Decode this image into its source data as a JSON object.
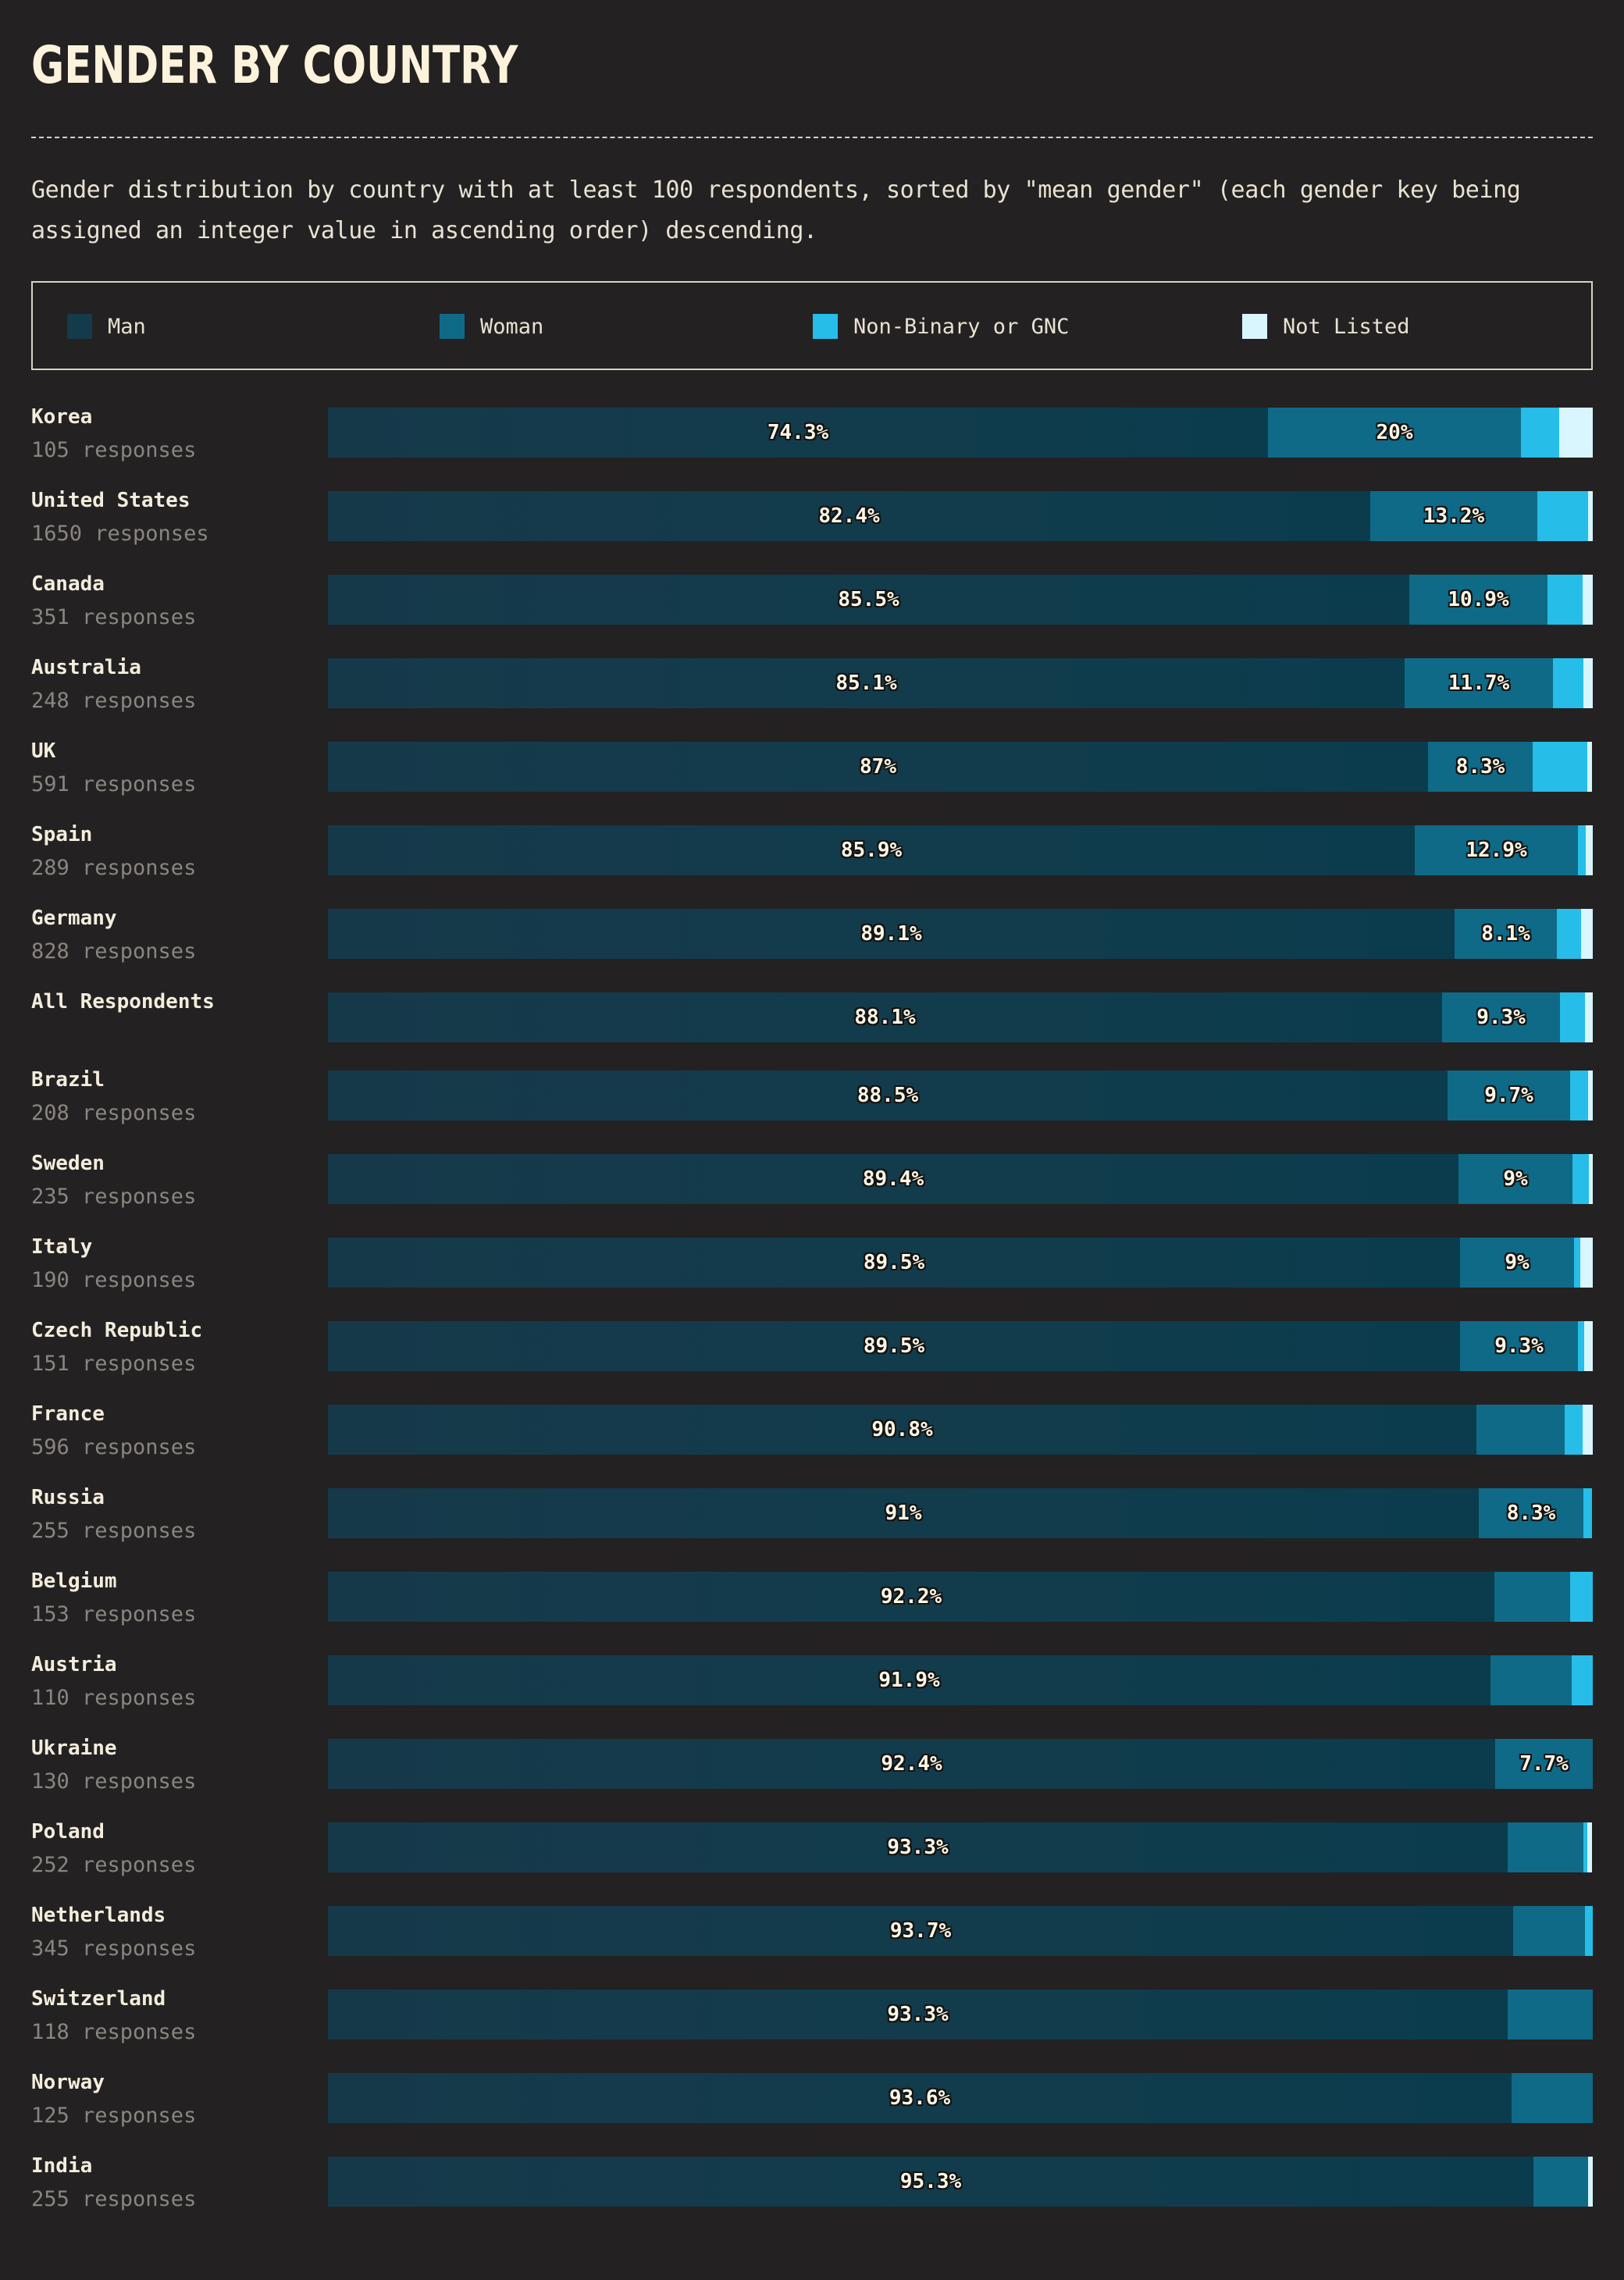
{
  "header": {
    "title": "GENDER BY COUNTRY",
    "description": "Gender distribution by country with at least 100 respondents, sorted by \"mean gender\" (each gender key being assigned an integer value in ascending order) descending."
  },
  "colors": {
    "man": "#133b49",
    "woman": "#0f6a88",
    "nonbinary": "#26bde8",
    "notlisted": "#d9f6ff",
    "background": "#242122"
  },
  "legend": [
    {
      "key": "man",
      "label": "Man"
    },
    {
      "key": "woman",
      "label": "Woman"
    },
    {
      "key": "nonbinary",
      "label": "Non-Binary or GNC"
    },
    {
      "key": "notlisted",
      "label": "Not Listed"
    }
  ],
  "chart_data": {
    "type": "bar",
    "orientation": "horizontal",
    "stacked": true,
    "normalized": true,
    "title": "GENDER BY COUNTRY",
    "series_names": [
      "Man",
      "Woman",
      "Non-Binary or GNC",
      "Not Listed"
    ],
    "rows": [
      {
        "country": "Korea",
        "responses": "105 responses",
        "values": [
          74.3,
          20.0,
          3.0,
          2.7
        ],
        "labels": [
          "74.3%",
          "20%",
          "",
          ""
        ]
      },
      {
        "country": "United States",
        "responses": "1650 responses",
        "values": [
          82.4,
          13.2,
          4.0,
          0.4
        ],
        "labels": [
          "82.4%",
          "13.2%",
          "",
          ""
        ]
      },
      {
        "country": "Canada",
        "responses": "351 responses",
        "values": [
          85.5,
          10.9,
          2.8,
          0.8
        ],
        "labels": [
          "85.5%",
          "10.9%",
          "",
          ""
        ]
      },
      {
        "country": "Australia",
        "responses": "248 responses",
        "values": [
          85.1,
          11.7,
          2.4,
          0.8
        ],
        "labels": [
          "85.1%",
          "11.7%",
          "",
          ""
        ]
      },
      {
        "country": "UK",
        "responses": "591 responses",
        "values": [
          87.0,
          8.3,
          4.3,
          0.4
        ],
        "labels": [
          "87%",
          "8.3%",
          "",
          ""
        ]
      },
      {
        "country": "Spain",
        "responses": "289 responses",
        "values": [
          85.9,
          12.9,
          0.6,
          0.6
        ],
        "labels": [
          "85.9%",
          "12.9%",
          "",
          ""
        ]
      },
      {
        "country": "Germany",
        "responses": "828 responses",
        "values": [
          89.1,
          8.1,
          1.9,
          0.9
        ],
        "labels": [
          "89.1%",
          "8.1%",
          "",
          ""
        ]
      },
      {
        "country": "All Respondents",
        "responses": "",
        "values": [
          88.1,
          9.3,
          2.0,
          0.6
        ],
        "labels": [
          "88.1%",
          "9.3%",
          "",
          ""
        ]
      },
      {
        "country": "Brazil",
        "responses": "208 responses",
        "values": [
          88.5,
          9.7,
          1.4,
          0.4
        ],
        "labels": [
          "88.5%",
          "9.7%",
          "",
          ""
        ]
      },
      {
        "country": "Sweden",
        "responses": "235 responses",
        "values": [
          89.4,
          9.0,
          1.3,
          0.3
        ],
        "labels": [
          "89.4%",
          "9%",
          "",
          ""
        ]
      },
      {
        "country": "Italy",
        "responses": "190 responses",
        "values": [
          89.5,
          9.0,
          0.5,
          1.0
        ],
        "labels": [
          "89.5%",
          "9%",
          "",
          ""
        ]
      },
      {
        "country": "Czech Republic",
        "responses": "151 responses",
        "values": [
          89.5,
          9.3,
          0.5,
          0.7
        ],
        "labels": [
          "89.5%",
          "9.3%",
          "",
          ""
        ]
      },
      {
        "country": "France",
        "responses": "596 responses",
        "values": [
          90.8,
          7.0,
          1.4,
          0.8
        ],
        "labels": [
          "90.8%",
          "",
          "",
          ""
        ]
      },
      {
        "country": "Russia",
        "responses": "255 responses",
        "values": [
          91.0,
          8.3,
          0.7,
          0.0
        ],
        "labels": [
          "91%",
          "8.3%",
          "",
          ""
        ]
      },
      {
        "country": "Belgium",
        "responses": "153 responses",
        "values": [
          92.2,
          6.0,
          1.8,
          0.0
        ],
        "labels": [
          "92.2%",
          "",
          "",
          ""
        ]
      },
      {
        "country": "Austria",
        "responses": "110 responses",
        "values": [
          91.9,
          6.4,
          1.7,
          0.0
        ],
        "labels": [
          "91.9%",
          "",
          "",
          ""
        ]
      },
      {
        "country": "Ukraine",
        "responses": "130 responses",
        "values": [
          92.4,
          7.7,
          0.0,
          0.0
        ],
        "labels": [
          "92.4%",
          "7.7%",
          "",
          ""
        ]
      },
      {
        "country": "Poland",
        "responses": "252 responses",
        "values": [
          93.3,
          6.0,
          0.3,
          0.4
        ],
        "labels": [
          "93.3%",
          "",
          "",
          ""
        ]
      },
      {
        "country": "Netherlands",
        "responses": "345 responses",
        "values": [
          93.7,
          5.7,
          0.6,
          0.0
        ],
        "labels": [
          "93.7%",
          "",
          "",
          ""
        ]
      },
      {
        "country": "Switzerland",
        "responses": "118 responses",
        "values": [
          93.3,
          6.7,
          0.0,
          0.0
        ],
        "labels": [
          "93.3%",
          "",
          "",
          ""
        ]
      },
      {
        "country": "Norway",
        "responses": "125 responses",
        "values": [
          93.6,
          6.4,
          0.0,
          0.0
        ],
        "labels": [
          "93.6%",
          "",
          "",
          ""
        ]
      },
      {
        "country": "India",
        "responses": "255 responses",
        "values": [
          95.3,
          4.3,
          0.0,
          0.4
        ],
        "labels": [
          "95.3%",
          "",
          "",
          ""
        ]
      }
    ]
  }
}
